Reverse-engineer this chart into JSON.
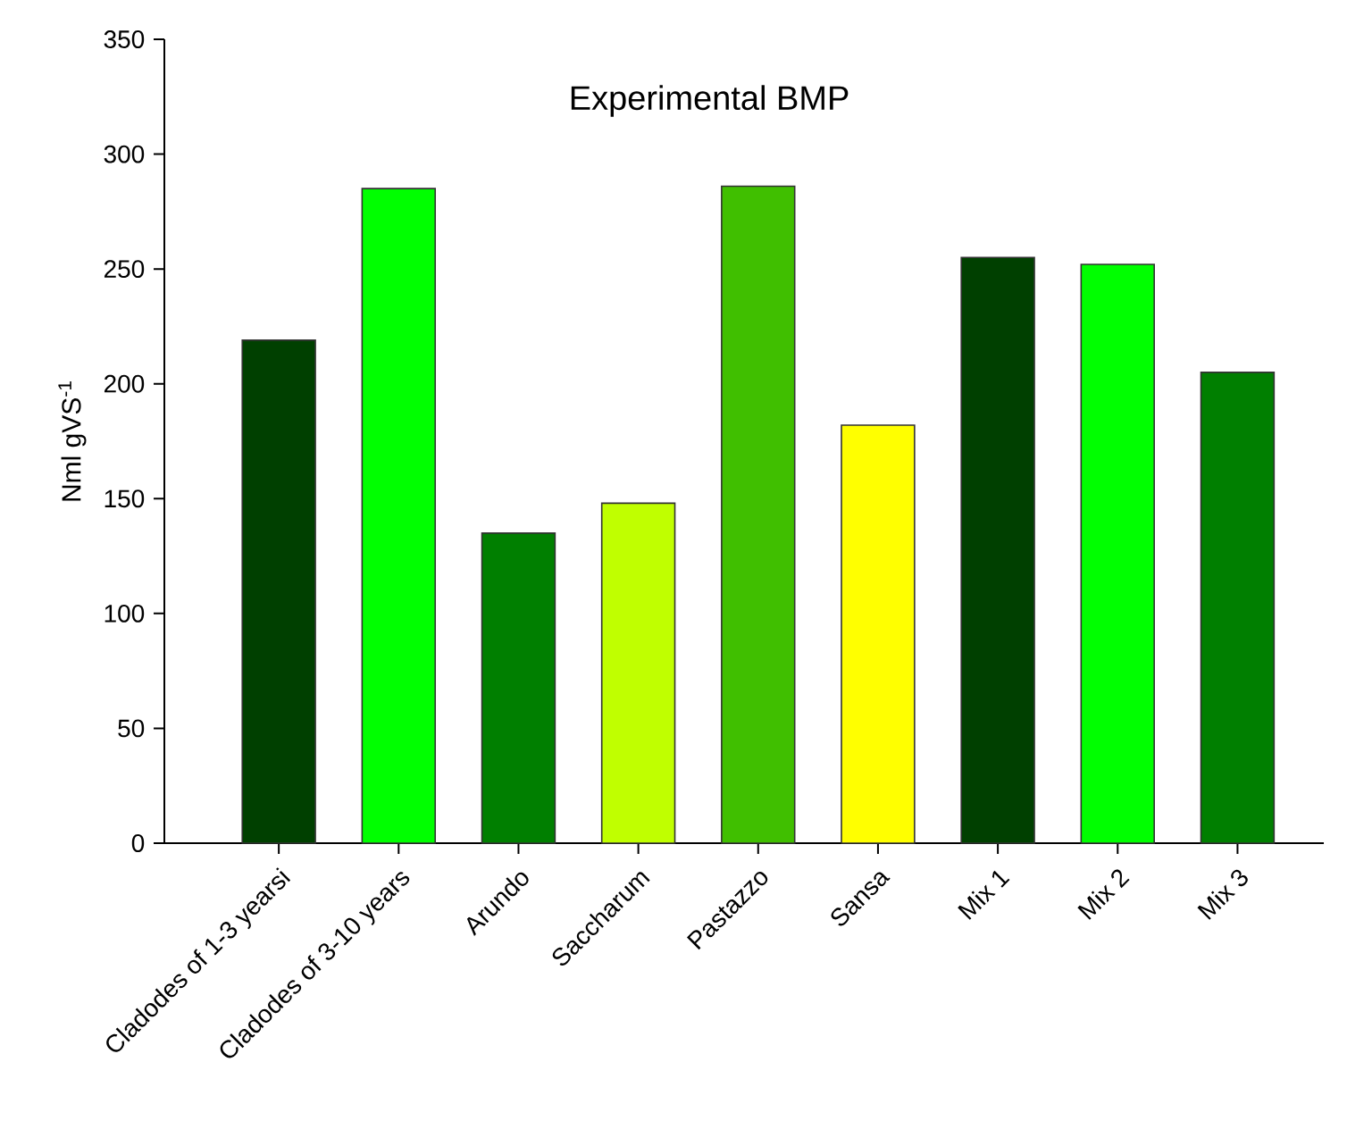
{
  "chart_data": {
    "type": "bar",
    "title": "Experimental BMP",
    "ylabel": "Nml gVS$^{-1}$",
    "categories": [
      "Cladodes of 1-3 yearsi",
      "Cladodes of 3-10 years",
      "Arundo",
      "Saccharum",
      "Pastazzo",
      "Sansa",
      "Mix 1",
      "Mix 2",
      "Mix 3"
    ],
    "values": [
      219,
      285,
      135,
      148,
      286,
      182,
      255,
      252,
      205
    ],
    "colors": [
      "#004000",
      "#00ff00",
      "#007f00",
      "#c0ff00",
      "#40bf00",
      "#ffff00",
      "#004000",
      "#00ff00",
      "#007f00"
    ],
    "ylim": [
      0,
      350
    ],
    "yticks": [
      0,
      50,
      100,
      150,
      200,
      250,
      300,
      350
    ]
  }
}
